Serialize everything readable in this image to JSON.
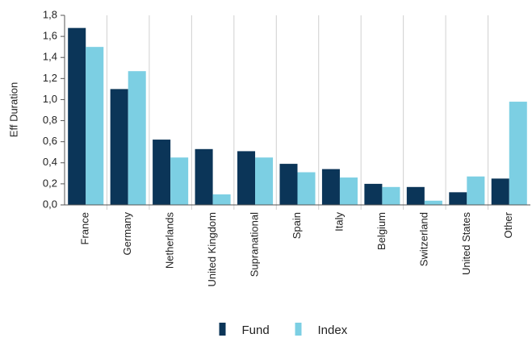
{
  "chart_data": {
    "type": "bar",
    "y_label": "Eff Duration",
    "categories": [
      "France",
      "Germany",
      "Netherlands",
      "United Kingdom",
      "Supranational",
      "Spain",
      "Italy",
      "Belgium",
      "Switzerland",
      "United States",
      "Other"
    ],
    "series": [
      {
        "name": "Fund",
        "color": "#0b3558",
        "values": [
          1.68,
          1.1,
          0.62,
          0.53,
          0.51,
          0.39,
          0.34,
          0.2,
          0.17,
          0.12,
          0.25
        ]
      },
      {
        "name": "Index",
        "color": "#7ccfe3",
        "values": [
          1.5,
          1.27,
          0.45,
          0.1,
          0.45,
          0.31,
          0.26,
          0.17,
          0.04,
          0.27,
          0.98
        ]
      }
    ],
    "ylim": [
      0,
      1.8
    ],
    "yticks": [
      {
        "value": 0,
        "label": "0,0"
      },
      {
        "value": 0.2,
        "label": "0,2"
      },
      {
        "value": 0.4,
        "label": "0,4"
      },
      {
        "value": 0.6,
        "label": "0,6"
      },
      {
        "value": 0.8,
        "label": "0,8"
      },
      {
        "value": 1.0,
        "label": "1,0"
      },
      {
        "value": 1.2,
        "label": "1,2"
      },
      {
        "value": 1.4,
        "label": "1,4"
      },
      {
        "value": 1.6,
        "label": "1,6"
      },
      {
        "value": 1.8,
        "label": "1,8"
      }
    ],
    "grid": false,
    "legend": "bottom"
  }
}
